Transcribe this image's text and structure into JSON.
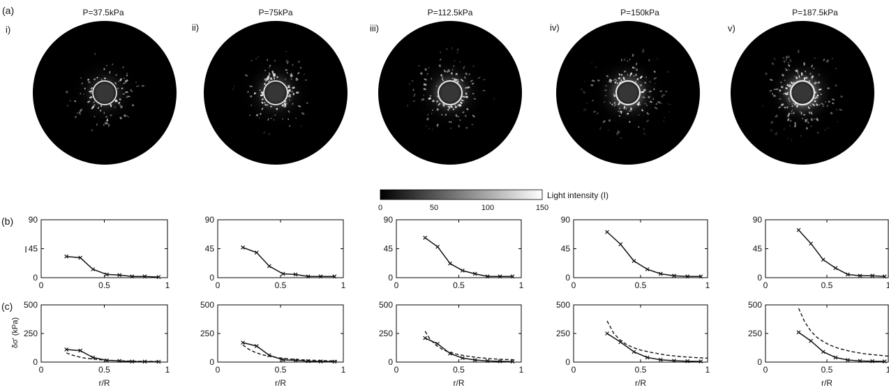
{
  "figure": {
    "row_labels": {
      "a": "(a)",
      "b": "(b)",
      "c": "(c)"
    },
    "panels": [
      {
        "roman": "i)",
        "title": "P=37.5kPa"
      },
      {
        "roman": "ii)",
        "title": "P=75kPa"
      },
      {
        "roman": "iii)",
        "title": "P=112.5kPa"
      },
      {
        "roman": "iv)",
        "title": "P=150kPa"
      },
      {
        "roman": "v)",
        "title": "P=187.5kPa"
      }
    ],
    "colorbar": {
      "label": "Light intensity (I)",
      "ticks": [
        "0",
        "50",
        "100",
        "150"
      ],
      "range": [
        0,
        150
      ]
    },
    "ylabel_b": "I",
    "ylabel_c": "δσ' (kPa)",
    "xlabel": "r/R",
    "colors": {
      "image_background": "#000000",
      "line": "#111111",
      "axes": "#000000"
    }
  },
  "chart_data": [
    {
      "type": "line",
      "row": "b",
      "panel": "i)",
      "xlim": [
        0,
        1
      ],
      "ylim": [
        0,
        90
      ],
      "xticks": [
        0,
        0.5,
        1
      ],
      "yticks": [
        0,
        45,
        90
      ],
      "series": [
        {
          "style": "solid-marker-x",
          "x": [
            0.2,
            0.31,
            0.41,
            0.52,
            0.62,
            0.72,
            0.82,
            0.93
          ],
          "y": [
            33,
            31,
            13,
            5,
            4,
            2,
            2,
            1
          ]
        }
      ]
    },
    {
      "type": "line",
      "row": "b",
      "panel": "ii)",
      "xlim": [
        0,
        1
      ],
      "ylim": [
        0,
        90
      ],
      "xticks": [
        0,
        0.5,
        1
      ],
      "yticks": [
        0,
        45,
        90
      ],
      "series": [
        {
          "style": "solid-marker-x",
          "x": [
            0.2,
            0.31,
            0.41,
            0.52,
            0.62,
            0.72,
            0.82,
            0.93
          ],
          "y": [
            47,
            39,
            18,
            6,
            5,
            2,
            2,
            2
          ]
        }
      ]
    },
    {
      "type": "line",
      "row": "b",
      "panel": "iii)",
      "xlim": [
        0,
        1
      ],
      "ylim": [
        0,
        90
      ],
      "xticks": [
        0,
        0.5,
        1
      ],
      "yticks": [
        0,
        45,
        90
      ],
      "series": [
        {
          "style": "solid-marker-x",
          "x": [
            0.23,
            0.33,
            0.43,
            0.53,
            0.63,
            0.73,
            0.83,
            0.93
          ],
          "y": [
            62,
            48,
            22,
            11,
            6,
            2,
            2,
            2
          ]
        }
      ]
    },
    {
      "type": "line",
      "row": "b",
      "panel": "iv)",
      "xlim": [
        0,
        1
      ],
      "ylim": [
        0,
        90
      ],
      "xticks": [
        0,
        0.5,
        1
      ],
      "yticks": [
        0,
        45,
        90
      ],
      "series": [
        {
          "style": "solid-marker-x",
          "x": [
            0.25,
            0.35,
            0.45,
            0.55,
            0.65,
            0.75,
            0.85,
            0.95
          ],
          "y": [
            71,
            52,
            26,
            13,
            6,
            3,
            2,
            2
          ]
        }
      ]
    },
    {
      "type": "line",
      "row": "b",
      "panel": "v)",
      "xlim": [
        0,
        1
      ],
      "ylim": [
        0,
        90
      ],
      "xticks": [
        0,
        0.5,
        1
      ],
      "yticks": [
        0,
        45,
        90
      ],
      "series": [
        {
          "style": "solid-marker-x",
          "x": [
            0.27,
            0.37,
            0.47,
            0.57,
            0.67,
            0.77,
            0.87,
            0.97
          ],
          "y": [
            74,
            53,
            28,
            15,
            5,
            3,
            3,
            2
          ]
        }
      ]
    },
    {
      "type": "line",
      "row": "c",
      "panel": "i)",
      "xlim": [
        0,
        1
      ],
      "ylim": [
        0,
        500
      ],
      "xticks": [
        0,
        0.5,
        1
      ],
      "yticks": [
        0,
        250,
        500
      ],
      "series": [
        {
          "style": "solid-marker-x",
          "x": [
            0.2,
            0.31,
            0.41,
            0.52,
            0.62,
            0.72,
            0.82,
            0.93
          ],
          "y": [
            110,
            100,
            40,
            15,
            10,
            5,
            4,
            3
          ]
        },
        {
          "style": "dashed",
          "x": [
            0.2,
            0.25,
            0.3,
            0.35,
            0.4,
            0.45,
            0.5,
            0.6,
            0.7,
            0.8,
            0.9,
            0.95
          ],
          "y": [
            80,
            60,
            45,
            35,
            28,
            22,
            18,
            12,
            9,
            7,
            6,
            5
          ]
        }
      ]
    },
    {
      "type": "line",
      "row": "c",
      "panel": "ii)",
      "xlim": [
        0,
        1
      ],
      "ylim": [
        0,
        500
      ],
      "xticks": [
        0,
        0.5,
        1
      ],
      "yticks": [
        0,
        250,
        500
      ],
      "series": [
        {
          "style": "solid-marker-x",
          "x": [
            0.2,
            0.31,
            0.41,
            0.52,
            0.62,
            0.72,
            0.82,
            0.93
          ],
          "y": [
            170,
            140,
            60,
            20,
            15,
            8,
            6,
            4
          ]
        },
        {
          "style": "dashed",
          "x": [
            0.2,
            0.25,
            0.3,
            0.35,
            0.4,
            0.45,
            0.5,
            0.6,
            0.7,
            0.8,
            0.9,
            0.95
          ],
          "y": [
            150,
            110,
            85,
            66,
            53,
            43,
            36,
            25,
            18,
            14,
            11,
            10
          ]
        }
      ]
    },
    {
      "type": "line",
      "row": "c",
      "panel": "iii)",
      "xlim": [
        0,
        1
      ],
      "ylim": [
        0,
        500
      ],
      "xticks": [
        0,
        0.5,
        1
      ],
      "yticks": [
        0,
        250,
        500
      ],
      "series": [
        {
          "style": "solid-marker-x",
          "x": [
            0.23,
            0.33,
            0.43,
            0.53,
            0.63,
            0.73,
            0.83,
            0.93
          ],
          "y": [
            210,
            160,
            75,
            35,
            18,
            10,
            7,
            5
          ]
        },
        {
          "style": "dashed",
          "x": [
            0.23,
            0.27,
            0.32,
            0.37,
            0.42,
            0.48,
            0.55,
            0.65,
            0.75,
            0.85,
            0.95
          ],
          "y": [
            270,
            200,
            145,
            110,
            88,
            70,
            55,
            40,
            30,
            24,
            20
          ]
        }
      ]
    },
    {
      "type": "line",
      "row": "c",
      "panel": "iv)",
      "xlim": [
        0,
        1
      ],
      "ylim": [
        0,
        500
      ],
      "xticks": [
        0,
        0.5,
        1
      ],
      "yticks": [
        0,
        250,
        500
      ],
      "series": [
        {
          "style": "solid-marker-x",
          "x": [
            0.25,
            0.35,
            0.45,
            0.55,
            0.65,
            0.75,
            0.85,
            0.95
          ],
          "y": [
            250,
            175,
            90,
            40,
            20,
            12,
            8,
            6
          ]
        },
        {
          "style": "dashed",
          "x": [
            0.25,
            0.3,
            0.35,
            0.4,
            0.45,
            0.5,
            0.6,
            0.7,
            0.8,
            0.9,
            1.0
          ],
          "y": [
            360,
            250,
            190,
            150,
            125,
            105,
            80,
            60,
            48,
            40,
            34
          ]
        }
      ]
    },
    {
      "type": "line",
      "row": "c",
      "panel": "v)",
      "xlim": [
        0,
        1
      ],
      "ylim": [
        0,
        500
      ],
      "xticks": [
        0,
        0.5,
        1
      ],
      "yticks": [
        0,
        250,
        500
      ],
      "series": [
        {
          "style": "solid-marker-x",
          "x": [
            0.27,
            0.37,
            0.47,
            0.57,
            0.67,
            0.77,
            0.87,
            0.97
          ],
          "y": [
            260,
            185,
            90,
            40,
            18,
            10,
            8,
            6
          ]
        },
        {
          "style": "dashed",
          "x": [
            0.27,
            0.32,
            0.37,
            0.42,
            0.47,
            0.52,
            0.6,
            0.7,
            0.8,
            0.9,
            1.0
          ],
          "y": [
            470,
            350,
            270,
            215,
            180,
            150,
            118,
            92,
            74,
            62,
            52
          ]
        }
      ]
    }
  ]
}
